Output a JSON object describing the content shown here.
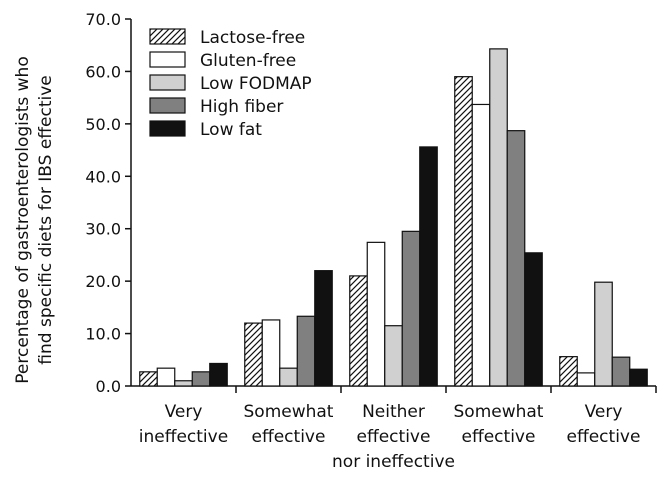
{
  "chart_data": {
    "type": "bar",
    "title": "",
    "xlabel": "",
    "ylabel_lines": [
      "Percentage of gastroenterologists who",
      "find specific diets for IBS effective"
    ],
    "ylim": [
      0,
      70
    ],
    "yticks": [
      "0.0",
      "10.0",
      "20.0",
      "30.0",
      "40.0",
      "50.0",
      "60.0",
      "70.0"
    ],
    "ytick_values": [
      0,
      10,
      20,
      30,
      40,
      50,
      60,
      70
    ],
    "categories": [
      [
        "Very",
        "ineffective"
      ],
      [
        "Somewhat",
        "effective"
      ],
      [
        "Neither",
        "effective",
        "nor ineffective"
      ],
      [
        "Somewhat",
        "effective"
      ],
      [
        "Very",
        "effective"
      ]
    ],
    "legend_position": "top-left",
    "series": [
      {
        "name": "Lactose-free",
        "fill": "hatch",
        "values": [
          2.7,
          12.0,
          21.0,
          59.0,
          5.6
        ]
      },
      {
        "name": "Gluten-free",
        "fill": "#ffffff",
        "values": [
          3.4,
          12.6,
          27.4,
          53.7,
          2.5
        ]
      },
      {
        "name": "Low FODMAP",
        "fill": "#d0d0d0",
        "values": [
          1.0,
          3.4,
          11.5,
          64.3,
          19.8
        ]
      },
      {
        "name": "High fiber",
        "fill": "#808080",
        "values": [
          2.7,
          13.3,
          29.5,
          48.7,
          5.5
        ]
      },
      {
        "name": "Low fat",
        "fill": "#111111",
        "values": [
          4.3,
          22.0,
          45.6,
          25.4,
          3.2
        ]
      }
    ]
  }
}
